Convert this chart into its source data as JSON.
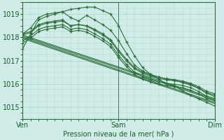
{
  "title": "Pression niveau de la mer( hPa )",
  "bg_color": "#d0ece8",
  "grid_color": "#aad4cc",
  "line_color": "#2d6e3a",
  "tick_color": "#1a5c28",
  "xlim": [
    0,
    48
  ],
  "ylim": [
    1014.5,
    1019.5
  ],
  "yticks": [
    1015,
    1016,
    1017,
    1018,
    1019
  ],
  "xtick_positions": [
    0,
    24,
    48
  ],
  "xtick_labels": [
    "Ven",
    "Sam",
    "Dim"
  ],
  "series": [
    [
      0,
      1017.5,
      2,
      1018.15,
      4,
      1018.75,
      6,
      1018.9,
      8,
      1019.0,
      10,
      1019.1,
      12,
      1019.2,
      14,
      1019.25,
      16,
      1019.3,
      18,
      1019.3,
      20,
      1019.15,
      22,
      1019.0,
      24,
      1018.5,
      26,
      1017.8,
      28,
      1017.2,
      30,
      1016.7,
      32,
      1016.4,
      34,
      1016.2,
      36,
      1016.0,
      38,
      1015.9,
      40,
      1015.7,
      42,
      1015.5,
      44,
      1015.35,
      46,
      1015.2,
      48,
      1015.05
    ],
    [
      0,
      1018.15,
      2,
      1018.4,
      4,
      1018.85,
      6,
      1019.0,
      8,
      1019.05,
      10,
      1019.1,
      12,
      1018.85,
      14,
      1018.7,
      16,
      1018.95,
      18,
      1018.75,
      20,
      1018.55,
      22,
      1018.3,
      24,
      1017.85,
      26,
      1017.3,
      28,
      1016.8,
      30,
      1016.55,
      32,
      1016.4,
      34,
      1016.3,
      36,
      1016.2,
      38,
      1016.15,
      40,
      1016.05,
      42,
      1015.95,
      44,
      1015.8,
      46,
      1015.6,
      48,
      1015.45
    ],
    [
      0,
      1018.15,
      2,
      1018.25,
      4,
      1018.55,
      6,
      1018.65,
      8,
      1018.7,
      10,
      1018.75,
      12,
      1018.5,
      14,
      1018.55,
      16,
      1018.5,
      18,
      1018.35,
      20,
      1018.15,
      22,
      1017.9,
      24,
      1017.45,
      26,
      1017.05,
      28,
      1016.7,
      30,
      1016.5,
      32,
      1016.38,
      34,
      1016.28,
      36,
      1016.22,
      38,
      1016.18,
      40,
      1016.12,
      42,
      1016.02,
      44,
      1015.88,
      46,
      1015.68,
      48,
      1015.58
    ],
    [
      0,
      1018.1,
      2,
      1018.2,
      4,
      1018.5,
      6,
      1018.6,
      8,
      1018.65,
      10,
      1018.7,
      12,
      1018.5,
      14,
      1018.55,
      16,
      1018.48,
      18,
      1018.3,
      20,
      1018.1,
      22,
      1017.85,
      24,
      1017.38,
      26,
      1016.98,
      28,
      1016.65,
      30,
      1016.45,
      32,
      1016.33,
      34,
      1016.23,
      36,
      1016.17,
      38,
      1016.13,
      40,
      1016.08,
      42,
      1015.98,
      44,
      1015.82,
      46,
      1015.62,
      48,
      1015.52
    ],
    [
      0,
      1017.85,
      2,
      1018.05,
      4,
      1018.35,
      6,
      1018.45,
      8,
      1018.5,
      10,
      1018.55,
      12,
      1018.35,
      14,
      1018.4,
      16,
      1018.33,
      18,
      1018.15,
      20,
      1017.95,
      22,
      1017.7,
      24,
      1017.23,
      26,
      1016.83,
      28,
      1016.5,
      30,
      1016.3,
      32,
      1016.18,
      34,
      1016.08,
      36,
      1016.02,
      38,
      1015.98,
      40,
      1015.93,
      42,
      1015.83,
      44,
      1015.67,
      46,
      1015.47,
      48,
      1015.37
    ],
    [
      0,
      1017.75,
      2,
      1017.95,
      4,
      1018.25,
      6,
      1018.35,
      8,
      1018.4,
      10,
      1018.45,
      12,
      1018.25,
      14,
      1018.3,
      16,
      1018.23,
      18,
      1018.05,
      20,
      1017.85,
      22,
      1017.6,
      24,
      1017.13,
      26,
      1016.73,
      28,
      1016.4,
      30,
      1016.2,
      32,
      1016.08,
      34,
      1015.98,
      36,
      1015.92,
      38,
      1015.88,
      40,
      1015.83,
      42,
      1015.73,
      44,
      1015.57,
      46,
      1015.37,
      48,
      1015.27
    ]
  ],
  "series_linear": [
    [
      0,
      1018.05,
      48,
      1015.3
    ],
    [
      0,
      1018.1,
      48,
      1015.35
    ],
    [
      0,
      1018.0,
      48,
      1015.2
    ],
    [
      0,
      1017.95,
      48,
      1015.15
    ]
  ]
}
